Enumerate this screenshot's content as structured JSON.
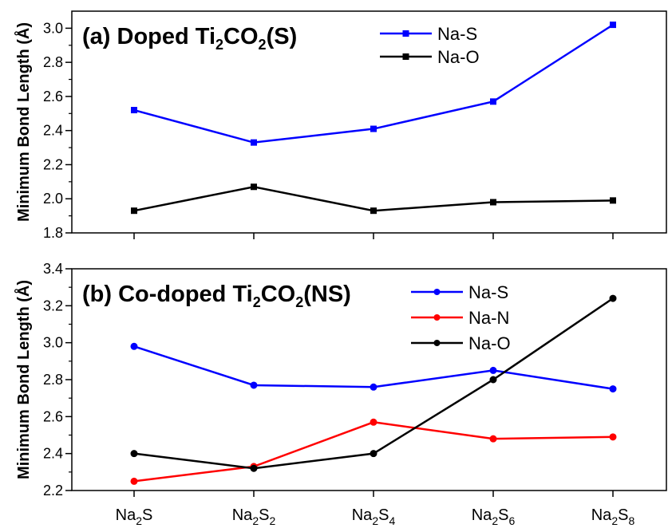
{
  "chart_data": [
    {
      "type": "line",
      "title": "(a) Doped Ti2CO2(S)",
      "title_parts": [
        "(a) Doped Ti",
        "2",
        "CO",
        "2",
        "(S)"
      ],
      "ylabel": "Minimum Bond Length (Å)",
      "categories": [
        "Na2S",
        "Na2S2",
        "Na2S4",
        "Na2S6",
        "Na2S8"
      ],
      "ylim": [
        1.8,
        3.1
      ],
      "yticks": [
        "1.8",
        "2.0",
        "2.2",
        "2.4",
        "2.6",
        "2.8",
        "3.0"
      ],
      "marker": "square",
      "legend_position": "top-right",
      "series": [
        {
          "name": "Na-S",
          "color": "#0000ff",
          "values": [
            2.52,
            2.33,
            2.41,
            2.57,
            3.02
          ]
        },
        {
          "name": "Na-O",
          "color": "#000000",
          "values": [
            1.93,
            2.07,
            1.93,
            1.98,
            1.99
          ]
        }
      ]
    },
    {
      "type": "line",
      "title": "(b) Co-doped Ti2CO2(NS)",
      "title_parts": [
        "(b) Co-doped Ti",
        "2",
        "CO",
        "2",
        "(NS)"
      ],
      "ylabel": "Minimum Bond Length (Å)",
      "categories": [
        "Na2S",
        "Na2S2",
        "Na2S4",
        "Na2S6",
        "Na2S8"
      ],
      "category_parts": [
        [
          "Na",
          "2",
          "S",
          ""
        ],
        [
          "Na",
          "2",
          "S",
          "2"
        ],
        [
          "Na",
          "2",
          "S",
          "4"
        ],
        [
          "Na",
          "2",
          "S",
          "6"
        ],
        [
          "Na",
          "2",
          "S",
          "8"
        ]
      ],
      "ylim": [
        2.2,
        3.4
      ],
      "yticks": [
        "2.2",
        "2.4",
        "2.6",
        "2.8",
        "3.0",
        "3.2",
        "3.4"
      ],
      "marker": "circle",
      "legend_position": "top-right",
      "series": [
        {
          "name": "Na-S",
          "color": "#0000ff",
          "values": [
            2.98,
            2.77,
            2.76,
            2.85,
            2.75
          ]
        },
        {
          "name": "Na-N",
          "color": "#ff0000",
          "values": [
            2.25,
            2.33,
            2.57,
            2.48,
            2.49
          ]
        },
        {
          "name": "Na-O",
          "color": "#000000",
          "values": [
            2.4,
            2.32,
            2.4,
            2.8,
            3.24
          ]
        }
      ]
    }
  ]
}
